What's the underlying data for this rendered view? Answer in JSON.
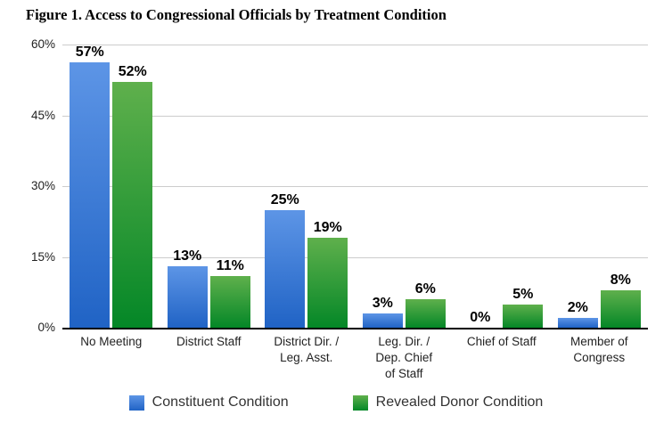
{
  "title": "Figure 1. Access to Congressional Officials by Treatment Condition",
  "chart_data": {
    "type": "bar",
    "title": "Figure 1. Access to Congressional Officials by Treatment Condition",
    "categories": [
      "No Meeting",
      "District Staff",
      "District Dir. / Leg. Asst.",
      "Leg. Dir. / Dep. Chief of Staff",
      "Chief of Staff",
      "Member of Congress"
    ],
    "category_display_lines": [
      [
        "No Meeting"
      ],
      [
        "District Staff"
      ],
      [
        "District Dir. /",
        "Leg. Asst."
      ],
      [
        "Leg. Dir. /",
        "Dep. Chief",
        "of Staff"
      ],
      [
        "Chief of Staff"
      ],
      [
        "Member of",
        "Congress"
      ]
    ],
    "series": [
      {
        "name": "Constituent Condition",
        "values": [
          57,
          13,
          25,
          3,
          0,
          2
        ],
        "value_labels": [
          "57%",
          "13%",
          "25%",
          "3%",
          "0%",
          "2%"
        ],
        "color_top": "#5d95e6",
        "color_bottom": "#2063c5"
      },
      {
        "name": "Revealed Donor Condition",
        "values": [
          52,
          11,
          19,
          6,
          5,
          8
        ],
        "value_labels": [
          "52%",
          "11%",
          "19%",
          "6%",
          "5%",
          "8%"
        ],
        "color_top": "#5fb04c",
        "color_bottom": "#048727"
      }
    ],
    "xlabel": "",
    "ylabel": "",
    "ylim": [
      0,
      60
    ],
    "y_ticks": [
      0,
      15,
      30,
      45,
      60
    ],
    "y_tick_labels": [
      "0%",
      "15%",
      "30%",
      "45%",
      "60%"
    ],
    "grid": true,
    "legend_position": "bottom"
  },
  "colors": {
    "gridline": "#cccccc",
    "axis_line": "#000000",
    "value_label": "#000000",
    "tick_label": "#222222",
    "legend_text": "#333333",
    "background": "#ffffff"
  }
}
